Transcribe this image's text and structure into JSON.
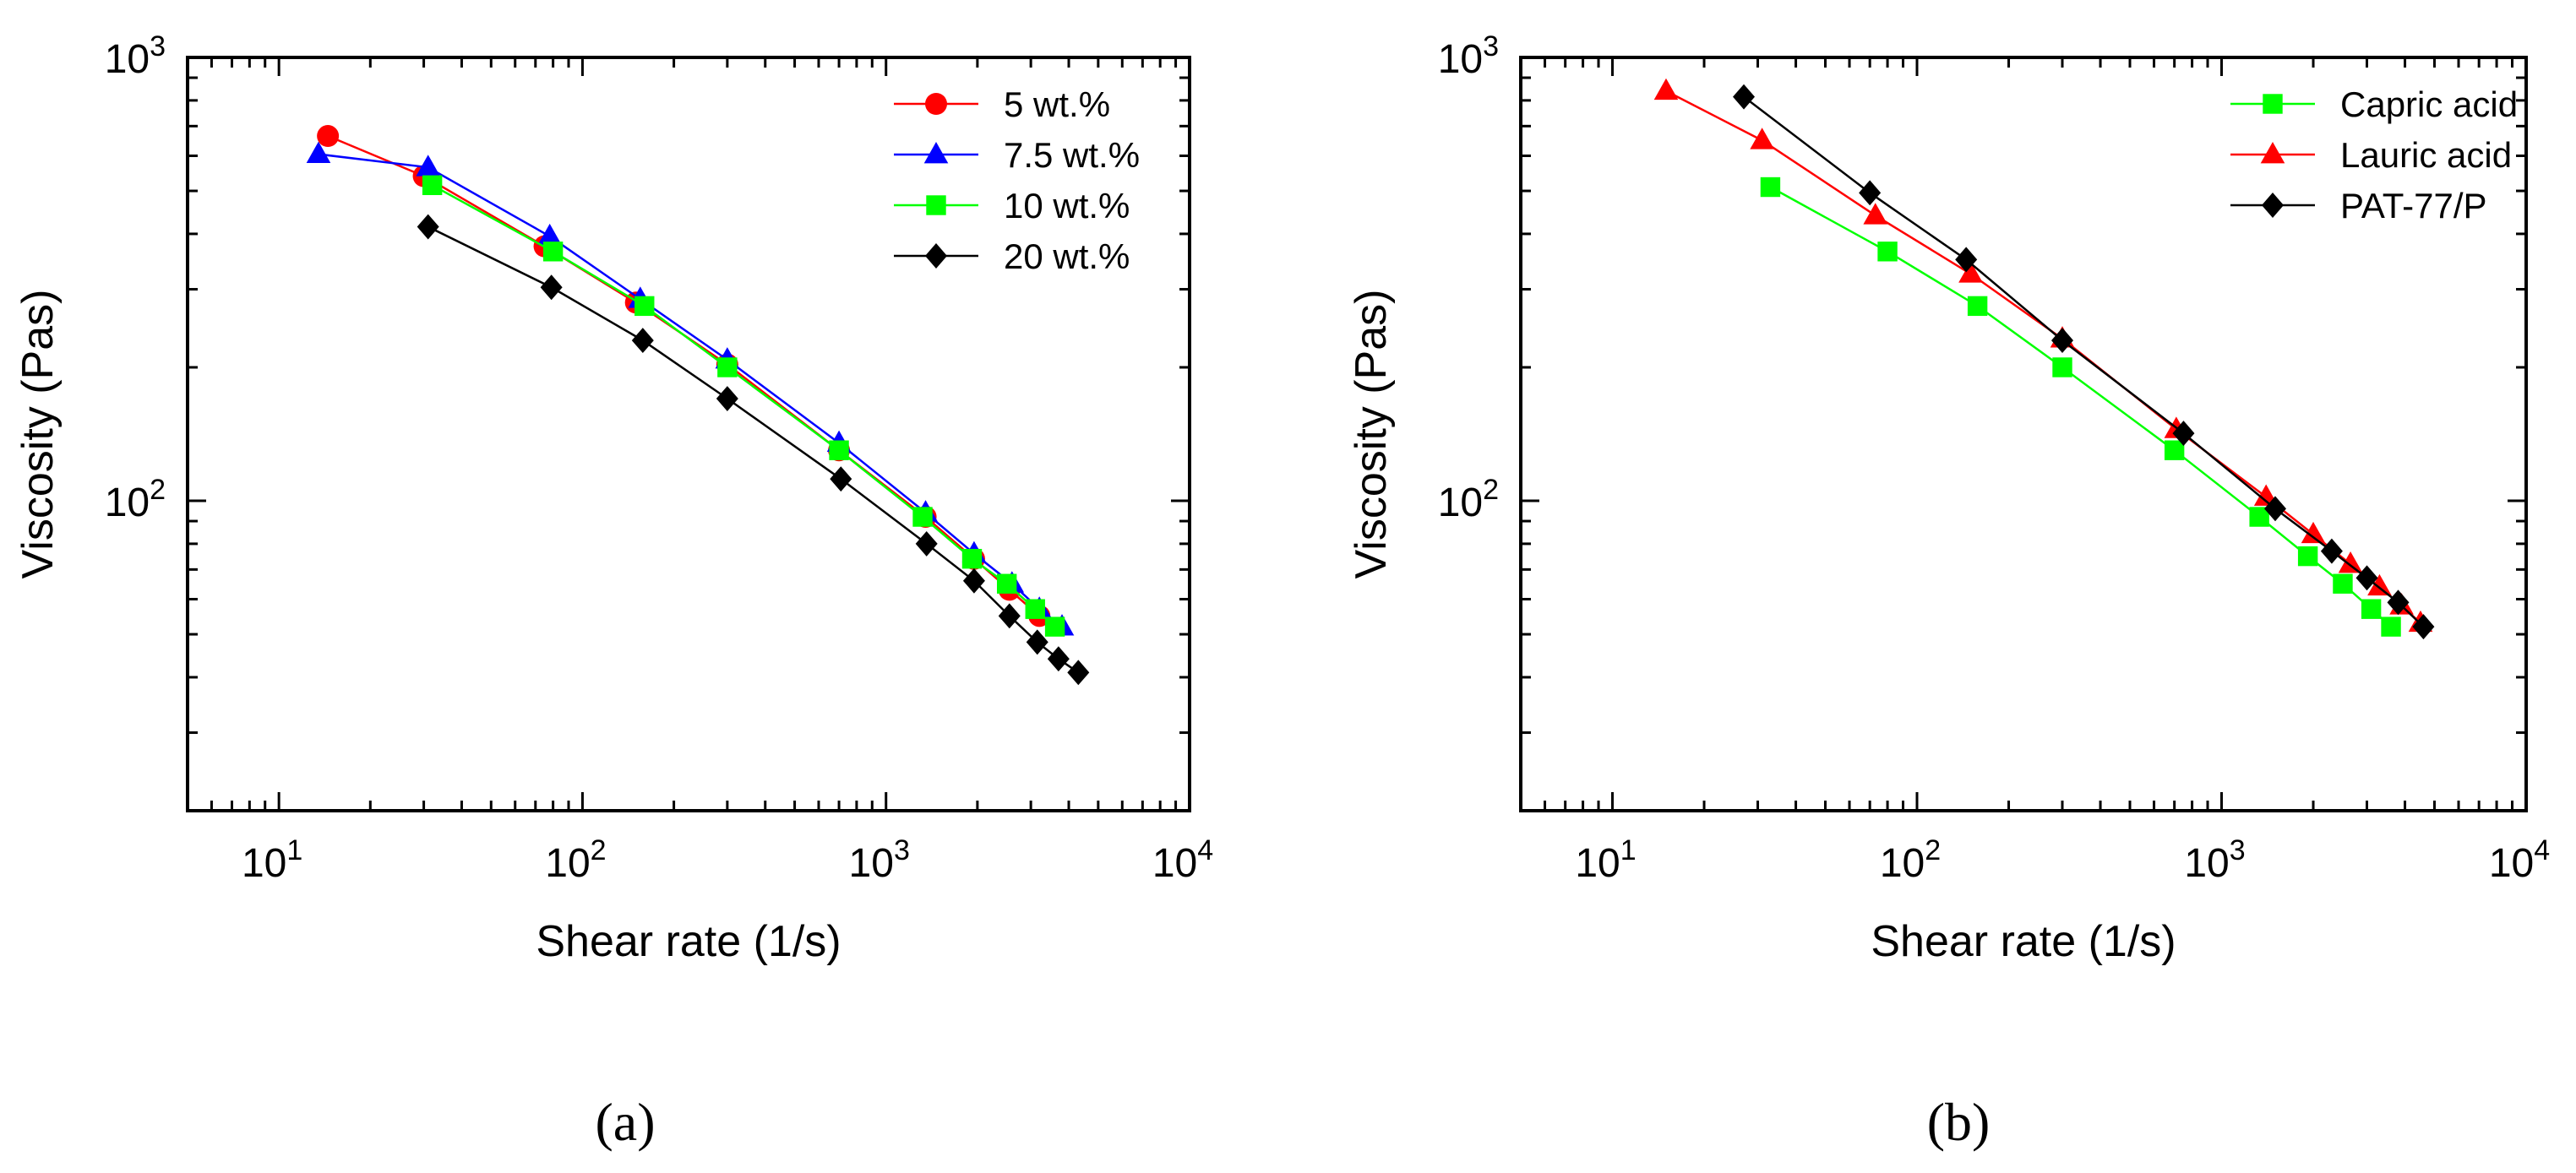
{
  "chart_data": [
    {
      "type": "line",
      "panel": "(a)",
      "xlabel": "Shear rate (1/s)",
      "ylabel": "Viscosity (Pas)",
      "xscale": "log",
      "yscale": "log",
      "xlim": [
        5,
        10000
      ],
      "ylim": [
        20,
        1000
      ],
      "xticks": [
        {
          "base": "10",
          "exp": "1"
        },
        {
          "base": "10",
          "exp": "2"
        },
        {
          "base": "10",
          "exp": "3"
        },
        {
          "base": "10",
          "exp": "4"
        }
      ],
      "yticks": [
        {
          "base": "10",
          "exp": "2"
        },
        {
          "base": "10",
          "exp": "3"
        }
      ],
      "legend_position": "top-right",
      "series": [
        {
          "name": "5 wt.%",
          "color": "#ff0000",
          "marker": "circle",
          "points": [
            [
              14.5,
              665
            ],
            [
              30,
              540
            ],
            [
              75,
              375
            ],
            [
              150,
              280
            ],
            [
              300,
              203
            ],
            [
              700,
              130
            ],
            [
              1350,
              92
            ],
            [
              1950,
              74
            ],
            [
              2550,
              63
            ],
            [
              3200,
              55
            ]
          ]
        },
        {
          "name": "7.5 wt.%",
          "color": "#0000ff",
          "marker": "triangle",
          "points": [
            [
              13.5,
              605
            ],
            [
              31,
              565
            ],
            [
              78,
              395
            ],
            [
              155,
              285
            ],
            [
              300,
              208
            ],
            [
              700,
              135
            ],
            [
              1350,
              94
            ],
            [
              1950,
              76
            ],
            [
              2600,
              65
            ],
            [
              3200,
              57
            ],
            [
              3800,
              52
            ]
          ]
        },
        {
          "name": "10 wt.%",
          "color": "#00ff00",
          "marker": "square",
          "points": [
            [
              32,
              515
            ],
            [
              80,
              365
            ],
            [
              160,
              275
            ],
            [
              300,
              200
            ],
            [
              700,
              130
            ],
            [
              1320,
              92
            ],
            [
              1920,
              74
            ],
            [
              2500,
              65
            ],
            [
              3100,
              57
            ],
            [
              3600,
              52
            ]
          ]
        },
        {
          "name": "20 wt.%",
          "color": "#000000",
          "marker": "diamond",
          "points": [
            [
              31,
              415
            ],
            [
              79,
              303
            ],
            [
              158,
              230
            ],
            [
              300,
              170
            ],
            [
              710,
              112
            ],
            [
              1360,
              80
            ],
            [
              1950,
              66
            ],
            [
              2550,
              55
            ],
            [
              3150,
              48
            ],
            [
              3700,
              44
            ],
            [
              4300,
              41
            ]
          ]
        }
      ]
    },
    {
      "type": "line",
      "panel": "(b)",
      "xlabel": "Shear rate (1/s)",
      "ylabel": "Viscosity (Pas)",
      "xscale": "log",
      "yscale": "log",
      "xlim": [
        5,
        10000
      ],
      "ylim": [
        20,
        1000
      ],
      "xticks": [
        {
          "base": "10",
          "exp": "1"
        },
        {
          "base": "10",
          "exp": "2"
        },
        {
          "base": "10",
          "exp": "3"
        },
        {
          "base": "10",
          "exp": "4"
        }
      ],
      "yticks": [
        {
          "base": "10",
          "exp": "2"
        },
        {
          "base": "10",
          "exp": "3"
        }
      ],
      "legend_position": "top-right",
      "series": [
        {
          "name": "Capric acid",
          "color": "#00ff00",
          "marker": "square",
          "points": [
            [
              33,
              510
            ],
            [
              80,
              365
            ],
            [
              158,
              275
            ],
            [
              300,
              200
            ],
            [
              700,
              130
            ],
            [
              1330,
              92
            ],
            [
              1920,
              75
            ],
            [
              2500,
              65
            ],
            [
              3100,
              57
            ],
            [
              3600,
              52
            ]
          ]
        },
        {
          "name": "Lauric acid",
          "color": "#ff0000",
          "marker": "triangle",
          "points": [
            [
              15,
              840
            ],
            [
              31,
              650
            ],
            [
              73,
              440
            ],
            [
              150,
              325
            ],
            [
              300,
              232
            ],
            [
              710,
              145
            ],
            [
              1400,
              102
            ],
            [
              2000,
              84
            ],
            [
              2650,
              72
            ],
            [
              3300,
              64
            ],
            [
              3900,
              58
            ],
            [
              4500,
              53
            ]
          ]
        },
        {
          "name": "PAT-77/P",
          "color": "#000000",
          "marker": "diamond",
          "points": [
            [
              27,
              815
            ],
            [
              70,
              495
            ],
            [
              145,
              350
            ],
            [
              300,
              230
            ],
            [
              750,
              142
            ],
            [
              1500,
              96
            ],
            [
              2300,
              77
            ],
            [
              3000,
              67
            ],
            [
              3800,
              59
            ],
            [
              4600,
              52
            ]
          ]
        }
      ]
    }
  ]
}
